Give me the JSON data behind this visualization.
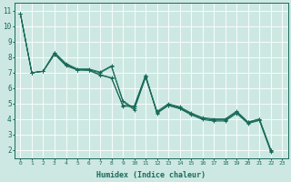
{
  "xlabel": "Humidex (Indice chaleur)",
  "bg_color": "#cde8e2",
  "grid_color": "#ffffff",
  "line_color": "#1a6b5a",
  "xlim": [
    -0.5,
    23.5
  ],
  "ylim": [
    1.5,
    11.5
  ],
  "yticks": [
    2,
    3,
    4,
    5,
    6,
    7,
    8,
    9,
    10,
    11
  ],
  "xticks": [
    0,
    1,
    2,
    3,
    4,
    5,
    6,
    7,
    8,
    9,
    10,
    11,
    12,
    13,
    14,
    15,
    16,
    17,
    18,
    19,
    20,
    21,
    22,
    23
  ],
  "series": [
    [
      10.8,
      7.0,
      7.1,
      8.2,
      7.5,
      7.2,
      7.15,
      6.85,
      6.65,
      4.9,
      4.85,
      6.85,
      4.4,
      4.95,
      4.75,
      4.35,
      4.05,
      3.95,
      3.95,
      4.45,
      3.8,
      4.0,
      2.0,
      null
    ],
    [
      10.8,
      7.0,
      7.1,
      8.3,
      7.55,
      7.2,
      7.2,
      7.0,
      7.4,
      5.15,
      4.6,
      6.7,
      4.45,
      4.9,
      4.7,
      4.35,
      4.05,
      3.95,
      3.95,
      4.45,
      3.75,
      3.95,
      1.95,
      null
    ],
    [
      10.8,
      7.0,
      7.1,
      8.3,
      7.6,
      7.25,
      7.25,
      7.05,
      7.45,
      5.2,
      4.7,
      6.75,
      4.5,
      5.0,
      4.8,
      4.4,
      4.1,
      4.02,
      4.02,
      4.52,
      3.82,
      4.02,
      2.02,
      null
    ],
    [
      10.8,
      7.0,
      7.1,
      8.2,
      7.45,
      7.18,
      7.18,
      6.88,
      6.68,
      4.85,
      4.8,
      6.8,
      4.38,
      4.88,
      4.68,
      4.28,
      3.98,
      3.88,
      3.88,
      4.38,
      3.72,
      3.92,
      1.9,
      null
    ]
  ],
  "marker": "+"
}
